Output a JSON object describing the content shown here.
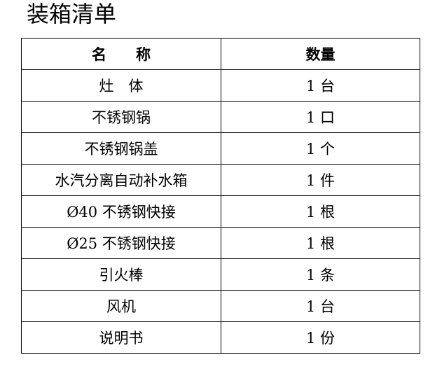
{
  "title": "装箱清单",
  "table": {
    "headers": [
      "名　　称",
      "数量"
    ],
    "rows": [
      {
        "name": "灶　体",
        "qty": "1 台"
      },
      {
        "name": "不锈钢锅",
        "qty": "1 口"
      },
      {
        "name": "不锈钢锅盖",
        "qty": "1 个"
      },
      {
        "name": "水汽分离自动补水箱",
        "qty": "1 件"
      },
      {
        "name": "Ø40 不锈钢快接",
        "qty": "1 根"
      },
      {
        "name": "Ø25 不锈钢快接",
        "qty": "1 根"
      },
      {
        "name": "引火棒",
        "qty": "1 条"
      },
      {
        "name": "风机",
        "qty": "1 台"
      },
      {
        "name": "说明书",
        "qty": "1 份"
      }
    ]
  }
}
